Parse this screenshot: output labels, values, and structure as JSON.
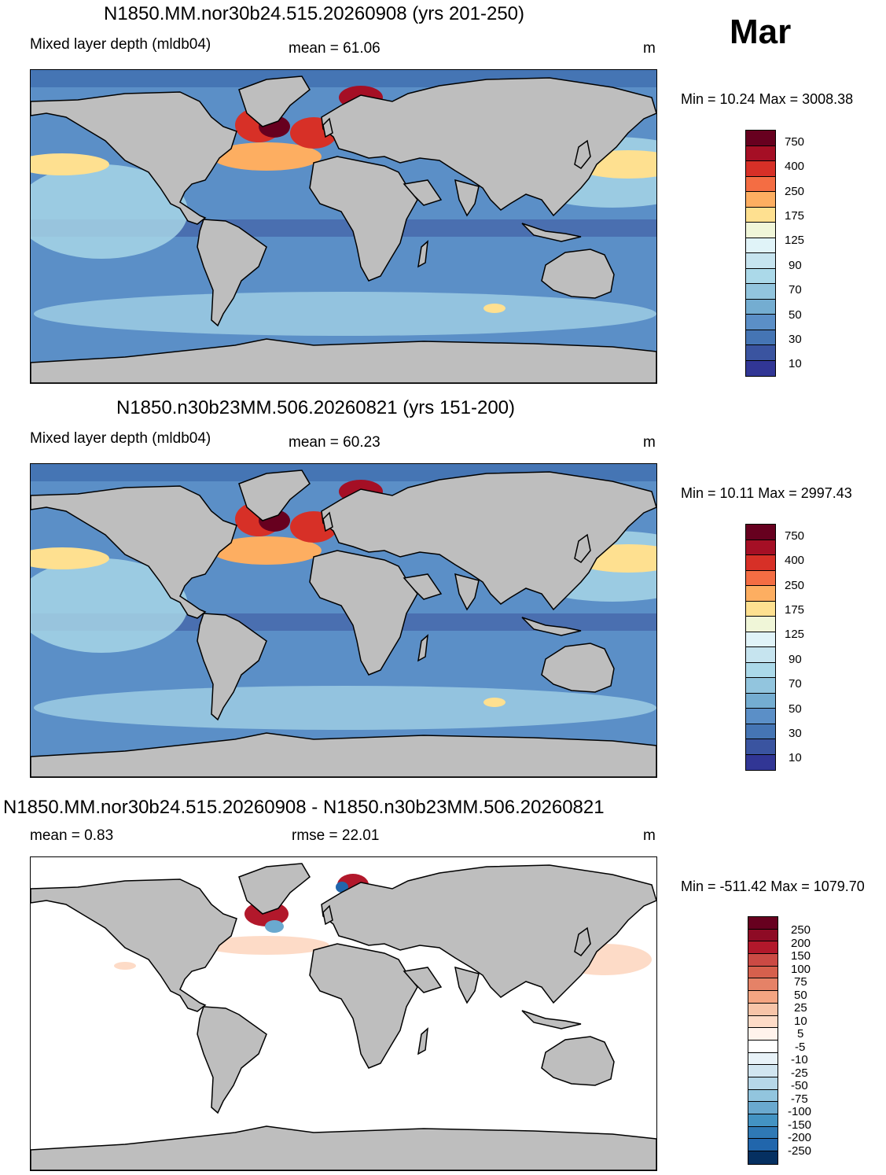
{
  "month": "Mar",
  "panels": [
    {
      "title": "N1850.MM.nor30b24.515.20260908 (yrs 201-250)",
      "left_text": "Mixed layer depth (mldb04)",
      "center_text": "mean =  61.06",
      "units": "m",
      "minmax": "Min =  10.24 Max = 3008.38",
      "colorbar": {
        "labels": [
          "750",
          "400",
          "250",
          "175",
          "125",
          "90",
          "70",
          "50",
          "30",
          "10"
        ],
        "colors": [
          "#67001f",
          "#a50f25",
          "#d73027",
          "#f46d43",
          "#fdae61",
          "#fee090",
          "#f0f6d8",
          "#e0f3f8",
          "#c6e4ef",
          "#abd9e9",
          "#92c5de",
          "#74add1",
          "#5b8fc7",
          "#4575b4",
          "#3a54a0",
          "#313695"
        ]
      }
    },
    {
      "title": "N1850.n30b23MM.506.20260821 (yrs 151-200)",
      "left_text": "Mixed layer depth (mldb04)",
      "center_text": "mean =  60.23",
      "units": "m",
      "minmax": "Min =  10.11 Max = 2997.43",
      "colorbar": {
        "labels": [
          "750",
          "400",
          "250",
          "175",
          "125",
          "90",
          "70",
          "50",
          "30",
          "10"
        ],
        "colors": [
          "#67001f",
          "#a50f25",
          "#d73027",
          "#f46d43",
          "#fdae61",
          "#fee090",
          "#f0f6d8",
          "#e0f3f8",
          "#c6e4ef",
          "#abd9e9",
          "#92c5de",
          "#74add1",
          "#5b8fc7",
          "#4575b4",
          "#3a54a0",
          "#313695"
        ]
      }
    },
    {
      "title": "N1850.MM.nor30b24.515.20260908 - N1850.n30b23MM.506.20260821",
      "left_text": "mean =   0.83",
      "center_text": "rmse =  22.01",
      "units": "m",
      "minmax": "Min = -511.42 Max = 1079.70",
      "colorbar": {
        "labels": [
          "250",
          "200",
          "150",
          "100",
          "75",
          "50",
          "25",
          "10",
          "5",
          "-5",
          "-10",
          "-25",
          "-50",
          "-75",
          "-100",
          "-150",
          "-200",
          "-250"
        ],
        "colors": [
          "#67001f",
          "#8e0b25",
          "#b2182b",
          "#cb4a44",
          "#d6604d",
          "#e58267",
          "#f4a582",
          "#f7c4a8",
          "#fddbc7",
          "#fff3ec",
          "#ffffff",
          "#e8f2f8",
          "#d1e5f0",
          "#b6d7e8",
          "#92c5de",
          "#6aa9cf",
          "#4393c3",
          "#2f79b5",
          "#2166ac",
          "#053061"
        ]
      }
    }
  ]
}
